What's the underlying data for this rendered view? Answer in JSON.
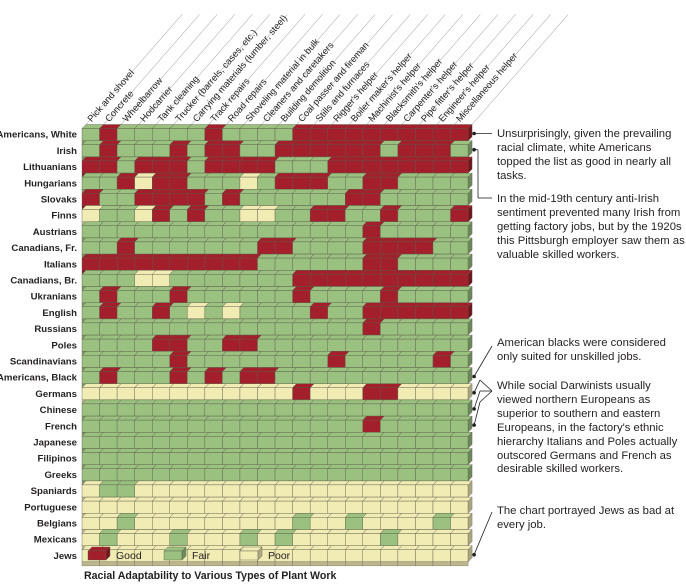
{
  "chart_data": {
    "type": "heatmap",
    "title": "Racial Adaptability to Various Types of Plant Work",
    "legend": [
      "Good",
      "Fair",
      "Poor"
    ],
    "colors": {
      "Good": "#a31f2b",
      "Fair": "#9ac17f",
      "Poor": "#f1ebb4"
    },
    "columns": [
      "Pick and shovel",
      "Concrete",
      "Wheelbarrow",
      "Hodcarrier",
      "Tank cleaning",
      "Trucker (barrels, cases, etc.)",
      "Carrying materials (lumber, steel)",
      "Track repairs",
      "Road repairs",
      "Shoveling material in bulk",
      "Cleaners and caretakers",
      "Building demolition",
      "Coal passer and fireman",
      "Stills and furnaces",
      "Rigger's helper",
      "Boiler maker's helper",
      "Machinist's helper",
      "Blacksmith's helper",
      "Carpenter's helper",
      "Pipe fitter's helper",
      "Engineer's helper",
      "Miscellaneous helper"
    ],
    "rows": [
      {
        "name": "Americans, White",
        "values": "FGFFFFFGFFFFGGGGGGGGGG"
      },
      {
        "name": "Irish",
        "values": "FGFFFGFGGFFGGGGGGFGGGF"
      },
      {
        "name": "Lithuanians",
        "values": "GGFGGGFGGGGFFFGGGGGGGG"
      },
      {
        "name": "Hungarians",
        "values": "FFGPGGFFFPFGGGFFGGFFFF"
      },
      {
        "name": "Slovaks",
        "values": "GFFGGGGFGFFFFFFGGFFFFF"
      },
      {
        "name": "Finns",
        "values": "PFFPGFGFFPPFFGGFFGFFFG"
      },
      {
        "name": "Austrians",
        "values": "FFFFFFFFFFFFFFFFGFFFFF"
      },
      {
        "name": "Canadians, Fr.",
        "values": "FFGFFFFFFFGGFFFFGGGGFF"
      },
      {
        "name": "Italians",
        "values": "GGGGGGGGGGFFFFFFGGFFFF"
      },
      {
        "name": "Canadians, Br.",
        "values": "FFFPPFFFFFFFGGGGGGGGGG"
      },
      {
        "name": "Ukranians",
        "values": "FGFFFGFFFFFFGFFFFGFFFF"
      },
      {
        "name": "English",
        "values": "FGFFGFPFPFFFFGFFGGGGGG"
      },
      {
        "name": "Russians",
        "values": "FFFFFFFFFFFFFFFFGFFFFF"
      },
      {
        "name": "Poles",
        "values": "FFFFGGFFGGFFFFFFFFFFFF"
      },
      {
        "name": "Scandinavians",
        "values": "FFFFFGFFFFFFFFGFFFFFGF"
      },
      {
        "name": "Americans, Black",
        "values": "FGFFFGFGFGGFFFFFFFFFFF"
      },
      {
        "name": "Germans",
        "values": "PPPPPPPPPPPPGPPPGGPPPP"
      },
      {
        "name": "Chinese",
        "values": "FFFFFFFFFFFFFFFFFFFFFF"
      },
      {
        "name": "French",
        "values": "FFFFFFFFFFFFFFFFGFFFFF"
      },
      {
        "name": "Japanese",
        "values": "FFFFFFFFFFFFFFFFFFFFFF"
      },
      {
        "name": "Filipinos",
        "values": "FFFFFFFFFFFFFFFFFFFFFF"
      },
      {
        "name": "Greeks",
        "values": "FFFFFFFFFFFFFFFFFFFFFF"
      },
      {
        "name": "Spaniards",
        "values": "PFFPPPPPPPPPPPPPPPPPPP"
      },
      {
        "name": "Portuguese",
        "values": "PPPPPPPPPPPPPPPPPPPPPP"
      },
      {
        "name": "Belgians",
        "values": "PPFPPPPPPPPPFPPFPPPPFP"
      },
      {
        "name": "Mexicans",
        "values": "PFPPPFPPPFPFPPPPPFPPPP"
      },
      {
        "name": "Jews",
        "values": "PPPPPPPPPPPPPPPPPPPPPP"
      }
    ]
  },
  "annotations": [
    {
      "text": "Unsurprisingly, given the prevailing racial climate, white Americans topped the list as good in nearly all tasks.",
      "row": 0
    },
    {
      "text": "In the mid-19th century anti-Irish sentiment prevented many Irish from getting factory jobs, but by the 1920s this Pittsburgh employer saw them as valuable skilled workers.",
      "row": 1
    },
    {
      "text": "American blacks were considered only suited for unskilled jobs.",
      "row": 15
    },
    {
      "text": "While social Darwinists usually viewed northern Europeans as superior to southern and eastern Europeans, in the factory's ethnic hierarchy Italians and Poles actually outscored Germans and French as desirable skilled workers.",
      "rows": [
        16,
        17,
        18
      ]
    },
    {
      "text": "The chart portrayed Jews as bad at every job.",
      "row": 26
    }
  ],
  "legend_labels": [
    "Good",
    "Fair",
    "Poor"
  ],
  "caption": "Racial Adaptability to Various Types of Plant Work"
}
